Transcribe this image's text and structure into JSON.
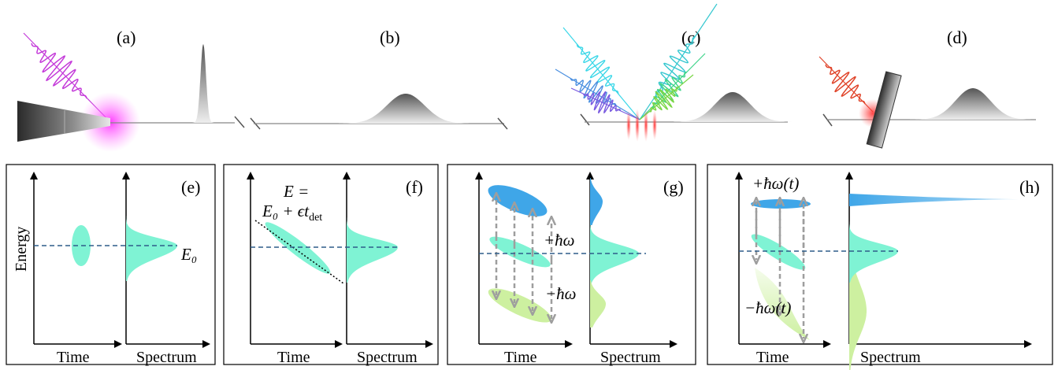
{
  "panel_labels": {
    "a": "(a)",
    "b": "(b)",
    "c": "(c)",
    "d": "(d)",
    "e": "(e)",
    "f": "(f)",
    "g": "(g)",
    "h": "(h)"
  },
  "axes": {
    "energy": "Energy",
    "time": "Time",
    "spectrum": "Spectrum"
  },
  "annotations": {
    "e0": "E₀",
    "f_eq_line1": "E =",
    "f_eq_line2": "E₀ + ϵt",
    "f_eq_sub": "det",
    "g_plus": "+ħω",
    "g_minus": "−ħω",
    "h_plus": "+ħω(t)",
    "h_minus": "−ħω(t)"
  },
  "colors": {
    "zero_loss": "#7ff3d4",
    "gain": "#3fa6e8",
    "loss": "#cdf0a0",
    "dashed_axis": "#2f5d8a",
    "arrow": "#9e9e9e",
    "pulse_magenta": "#c43bd9",
    "pulse_red": "#e0442a"
  }
}
